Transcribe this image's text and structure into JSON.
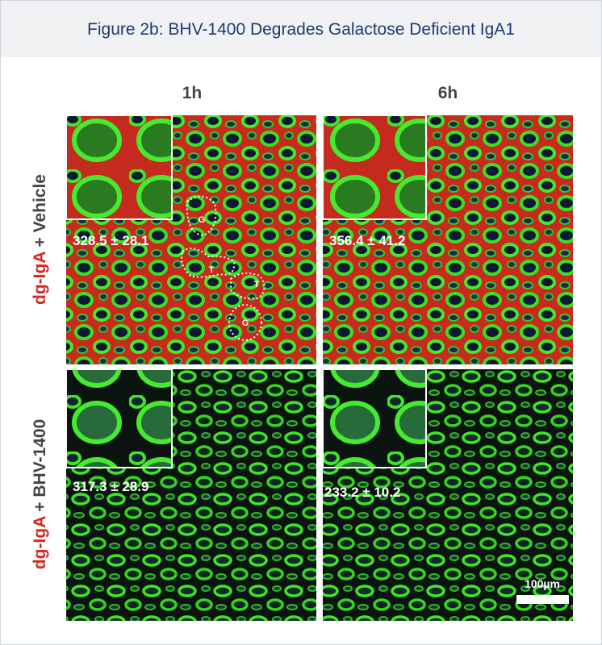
{
  "title": "Figure 2b: BHV-1400 Degrades Galactose Deficient IgA1",
  "columns": [
    "1h",
    "6h"
  ],
  "rows": [
    {
      "stain": "dg-IgA",
      "treatment": "+ Vehicle",
      "panels": [
        "328.5 ± 28.1",
        "356.4 ± 41.2"
      ]
    },
    {
      "stain": "dg-IgA",
      "treatment": "+ BHV-1400",
      "panels": [
        "317.3 ± 28.9",
        "233.2 ± 10.2"
      ]
    }
  ],
  "annotations": [
    "G",
    "T",
    "T",
    "G"
  ],
  "scale_bar": "100µm"
}
